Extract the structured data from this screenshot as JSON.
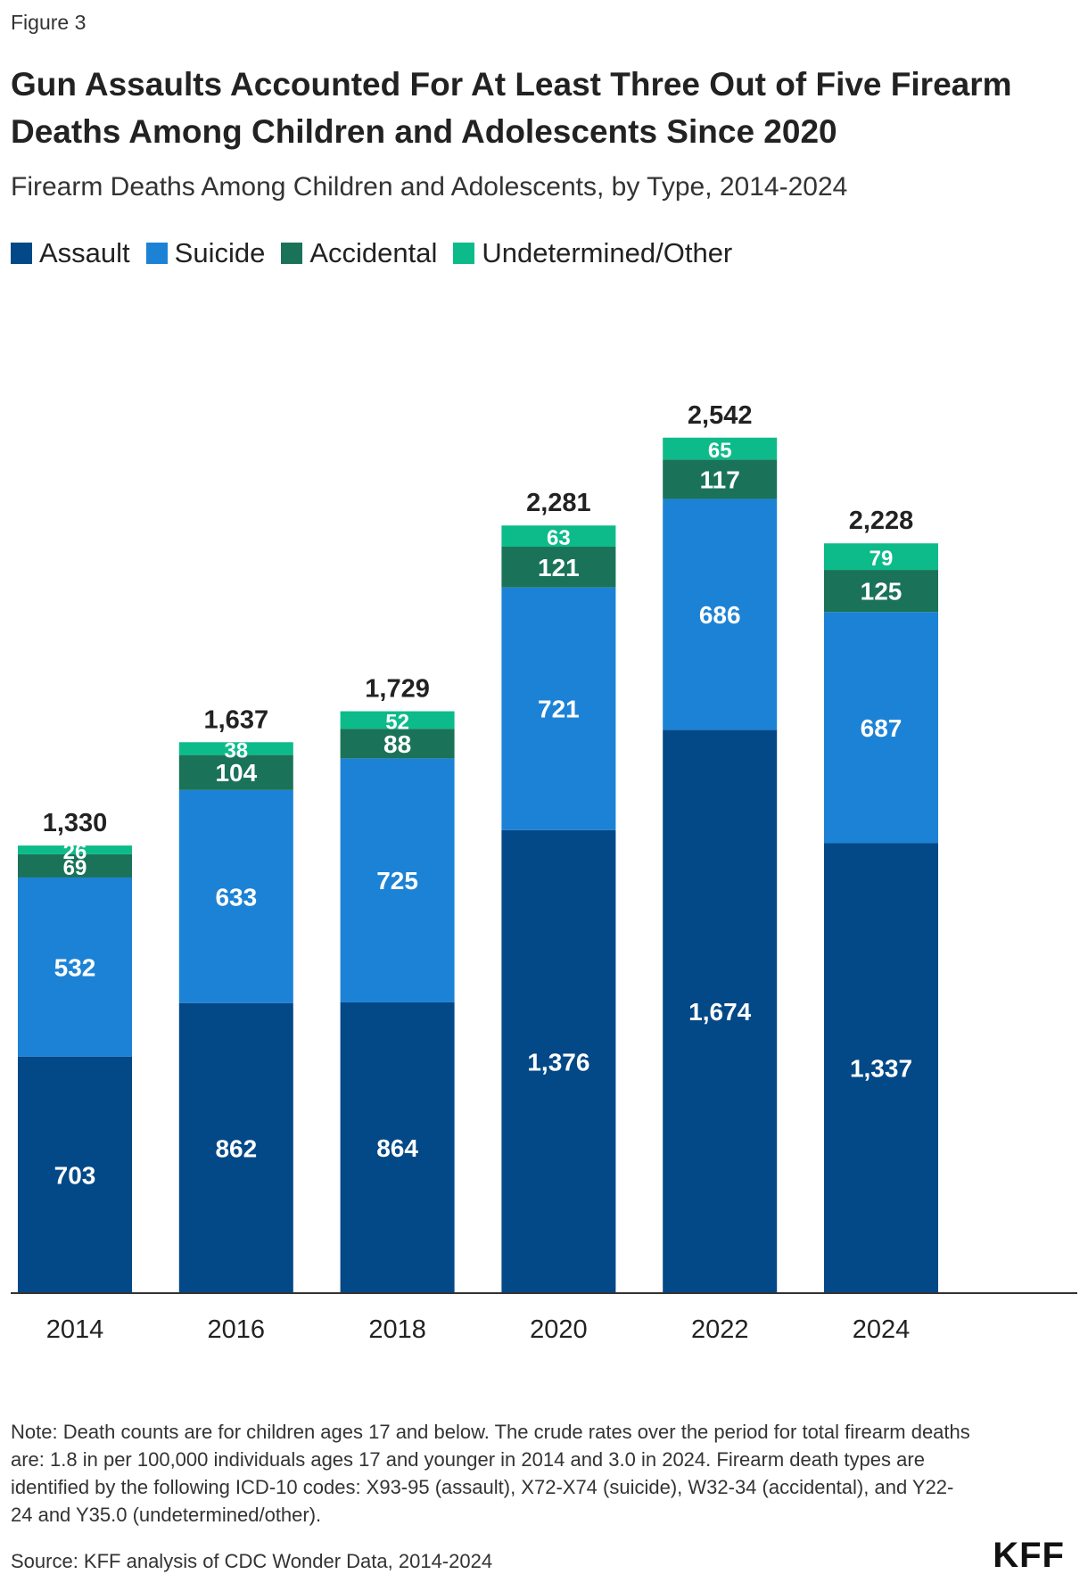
{
  "figure_label": "Figure 3",
  "title": "Gun Assaults Accounted For At Least Three Out of Five Firearm Deaths Among Children and Adolescents Since 2020",
  "subtitle": "Firearm Deaths Among Children and Adolescents, by Type, 2014-2024",
  "colors": {
    "assault": "#034887",
    "suicide": "#1c82d6",
    "accidental": "#1a7358",
    "undetermined": "#0dbb8a",
    "axis": "#333333"
  },
  "chart_data": {
    "type": "bar",
    "stacked": true,
    "categories": [
      "2014",
      "2016",
      "2018",
      "2020",
      "2022",
      "2024"
    ],
    "series": [
      {
        "name": "Assault",
        "color": "#034887",
        "values": [
          703,
          862,
          864,
          1376,
          1674,
          1337
        ],
        "labels": [
          "703",
          "862",
          "864",
          "1,376",
          "1,674",
          "1,337"
        ]
      },
      {
        "name": "Suicide",
        "color": "#1c82d6",
        "values": [
          532,
          633,
          725,
          721,
          686,
          687
        ],
        "labels": [
          "532",
          "633",
          "725",
          "721",
          "686",
          "687"
        ]
      },
      {
        "name": "Accidental",
        "color": "#1a7358",
        "values": [
          69,
          104,
          88,
          121,
          117,
          125
        ],
        "labels": [
          "69",
          "104",
          "88",
          "121",
          "117",
          "125"
        ]
      },
      {
        "name": "Undetermined/Other",
        "color": "#0dbb8a",
        "values": [
          26,
          38,
          52,
          63,
          65,
          79
        ],
        "labels": [
          "26",
          "38",
          "52",
          "63",
          "65",
          "79"
        ]
      }
    ],
    "totals": [
      1330,
      1637,
      1729,
      2281,
      2542,
      2228
    ],
    "total_labels": [
      "1,330",
      "1,637",
      "1,729",
      "2,281",
      "2,542",
      "2,228"
    ],
    "ylim": [
      0,
      2650
    ],
    "grid": false,
    "legend_position": "top-left"
  },
  "note": "Note: Death counts are for children ages 17 and below. The crude rates over the period for total firearm deaths are: 1.8 in per 100,000 individuals ages 17 and younger in 2014 and 3.0 in 2024. Firearm death types are identified by the following ICD-10 codes: X93-95 (assault), X72-X74 (suicide), W32-34 (accidental), and Y22-24 and Y35.0 (undetermined/other).",
  "source": "Source: KFF analysis of CDC Wonder Data, 2014-2024",
  "logo_text": "KFF"
}
